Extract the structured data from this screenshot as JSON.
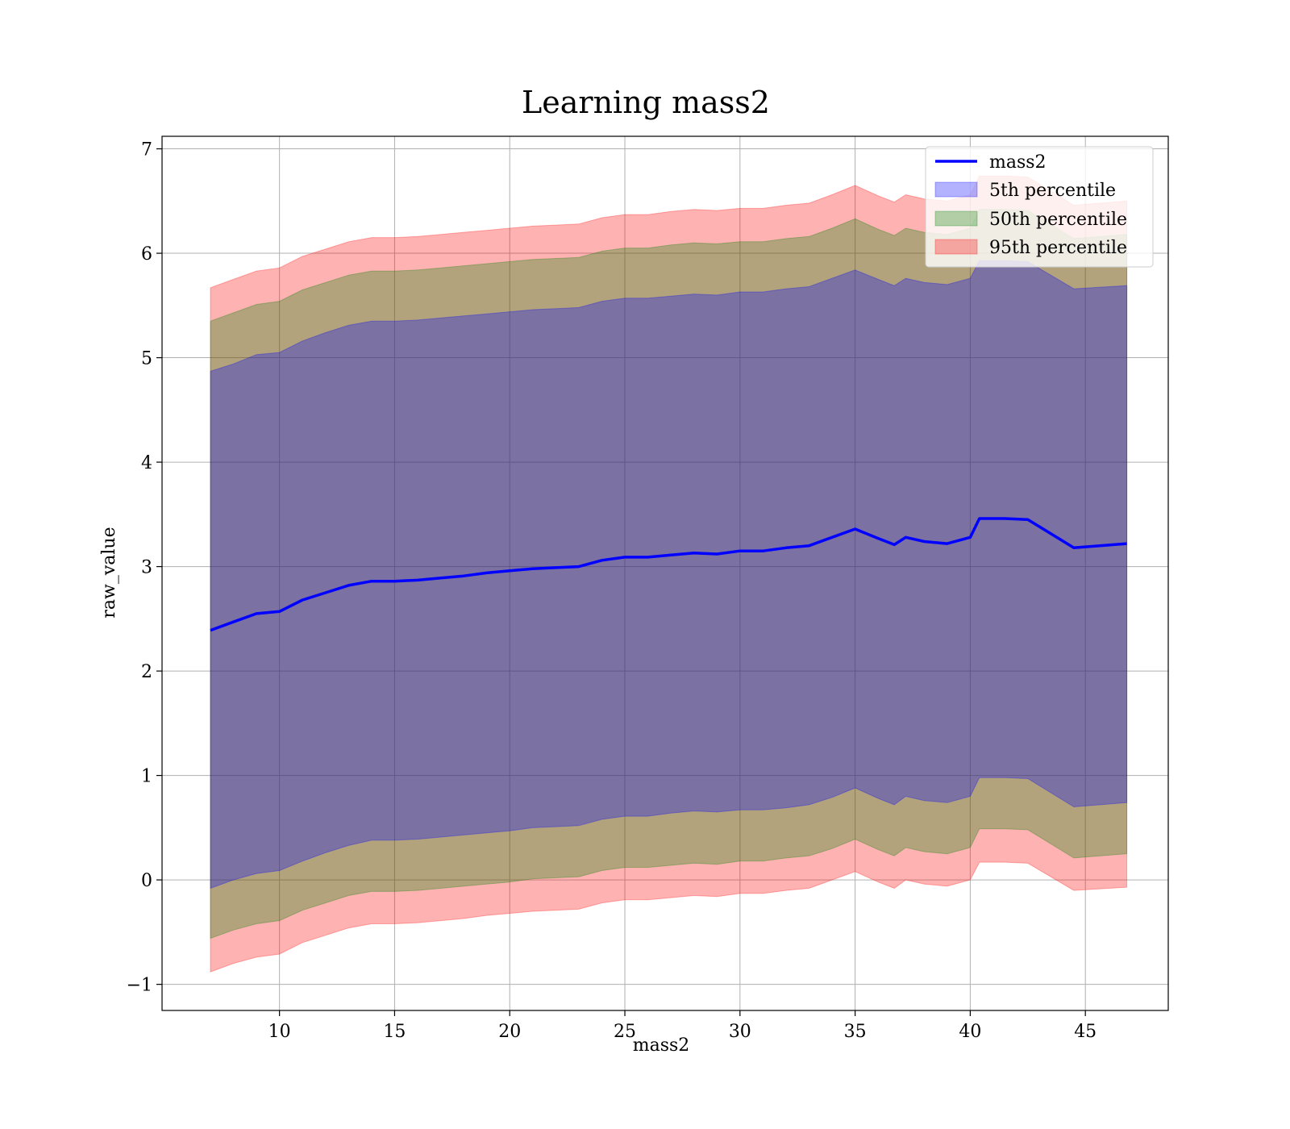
{
  "chart_data": {
    "type": "area",
    "title": "Learning mass2",
    "xlabel": "mass2",
    "ylabel": "raw_value",
    "xlim": [
      4.9,
      48.6
    ],
    "ylim": [
      -1.25,
      7.12
    ],
    "xticks": [
      10,
      15,
      20,
      25,
      30,
      35,
      40,
      45
    ],
    "yticks": [
      -1,
      0,
      1,
      2,
      3,
      4,
      5,
      6,
      7
    ],
    "xtick_labels": [
      "10",
      "15",
      "20",
      "25",
      "30",
      "35",
      "40",
      "45"
    ],
    "ytick_labels": [
      "−1",
      "0",
      "1",
      "2",
      "3",
      "4",
      "5",
      "6",
      "7"
    ],
    "grid": true,
    "legend_position": "top-right",
    "colors": {
      "line": "#0000ff",
      "p5": "#0000ff",
      "p50": "#008000",
      "p95": "#ff0000",
      "grid": "#b0b0b0"
    },
    "x": [
      7.0,
      8.0,
      9.0,
      10.0,
      11.0,
      12.0,
      13.0,
      14.0,
      15.0,
      16.0,
      17.0,
      18.0,
      19.0,
      20.0,
      21.0,
      22.0,
      23.0,
      24.0,
      25.0,
      26.0,
      27.0,
      28.0,
      29.0,
      30.0,
      31.0,
      32.0,
      33.0,
      34.0,
      35.0,
      36.0,
      36.7,
      37.2,
      38.0,
      39.0,
      40.0,
      40.4,
      41.5,
      42.5,
      44.5,
      46.8
    ],
    "series": [
      {
        "name": "mass2",
        "kind": "line",
        "values": [
          2.39,
          2.47,
          2.55,
          2.57,
          2.68,
          2.75,
          2.82,
          2.86,
          2.86,
          2.87,
          2.89,
          2.91,
          2.94,
          2.96,
          2.98,
          2.99,
          3.0,
          3.06,
          3.09,
          3.09,
          3.11,
          3.13,
          3.12,
          3.15,
          3.15,
          3.18,
          3.2,
          3.28,
          3.36,
          3.27,
          3.21,
          3.28,
          3.24,
          3.22,
          3.28,
          3.46,
          3.46,
          3.45,
          3.18,
          3.22
        ]
      },
      {
        "name": "5th percentile",
        "kind": "band",
        "lower": [
          -0.08,
          0.0,
          0.06,
          0.09,
          0.18,
          0.26,
          0.33,
          0.38,
          0.38,
          0.39,
          0.41,
          0.43,
          0.45,
          0.47,
          0.5,
          0.51,
          0.52,
          0.58,
          0.61,
          0.61,
          0.64,
          0.66,
          0.65,
          0.67,
          0.67,
          0.69,
          0.72,
          0.79,
          0.88,
          0.78,
          0.72,
          0.8,
          0.76,
          0.74,
          0.8,
          0.98,
          0.98,
          0.97,
          0.7,
          0.74
        ],
        "upper": [
          4.87,
          4.94,
          5.03,
          5.05,
          5.16,
          5.24,
          5.31,
          5.35,
          5.35,
          5.36,
          5.38,
          5.4,
          5.42,
          5.44,
          5.46,
          5.47,
          5.48,
          5.54,
          5.57,
          5.57,
          5.59,
          5.61,
          5.6,
          5.63,
          5.63,
          5.66,
          5.68,
          5.76,
          5.84,
          5.75,
          5.69,
          5.76,
          5.72,
          5.7,
          5.76,
          5.93,
          5.93,
          5.92,
          5.66,
          5.69
        ]
      },
      {
        "name": "50th percentile",
        "kind": "band",
        "lower": [
          -0.56,
          -0.48,
          -0.42,
          -0.39,
          -0.29,
          -0.22,
          -0.15,
          -0.11,
          -0.11,
          -0.1,
          -0.08,
          -0.06,
          -0.04,
          -0.02,
          0.01,
          0.02,
          0.03,
          0.09,
          0.12,
          0.12,
          0.14,
          0.16,
          0.15,
          0.18,
          0.18,
          0.21,
          0.23,
          0.3,
          0.39,
          0.29,
          0.23,
          0.31,
          0.27,
          0.25,
          0.31,
          0.49,
          0.49,
          0.48,
          0.21,
          0.25
        ],
        "upper": [
          5.35,
          5.43,
          5.51,
          5.54,
          5.65,
          5.72,
          5.79,
          5.83,
          5.83,
          5.84,
          5.86,
          5.88,
          5.9,
          5.92,
          5.94,
          5.95,
          5.96,
          6.02,
          6.05,
          6.05,
          6.08,
          6.1,
          6.09,
          6.11,
          6.11,
          6.14,
          6.16,
          6.24,
          6.33,
          6.23,
          6.17,
          6.24,
          6.2,
          6.18,
          6.24,
          6.42,
          6.42,
          6.41,
          6.14,
          6.18
        ]
      },
      {
        "name": "95th percentile",
        "kind": "band",
        "lower": [
          -0.88,
          -0.8,
          -0.74,
          -0.71,
          -0.6,
          -0.53,
          -0.46,
          -0.42,
          -0.42,
          -0.41,
          -0.39,
          -0.37,
          -0.34,
          -0.32,
          -0.3,
          -0.29,
          -0.28,
          -0.22,
          -0.19,
          -0.19,
          -0.17,
          -0.15,
          -0.16,
          -0.13,
          -0.13,
          -0.1,
          -0.08,
          0.0,
          0.08,
          -0.02,
          -0.08,
          0.0,
          -0.04,
          -0.06,
          0.0,
          0.17,
          0.17,
          0.16,
          -0.1,
          -0.07
        ],
        "upper": [
          5.67,
          5.75,
          5.83,
          5.86,
          5.97,
          6.04,
          6.11,
          6.15,
          6.15,
          6.16,
          6.18,
          6.2,
          6.22,
          6.24,
          6.26,
          6.27,
          6.28,
          6.34,
          6.37,
          6.37,
          6.4,
          6.42,
          6.41,
          6.43,
          6.43,
          6.46,
          6.48,
          6.56,
          6.65,
          6.55,
          6.49,
          6.56,
          6.52,
          6.5,
          6.56,
          6.74,
          6.74,
          6.73,
          6.46,
          6.5
        ]
      }
    ]
  }
}
